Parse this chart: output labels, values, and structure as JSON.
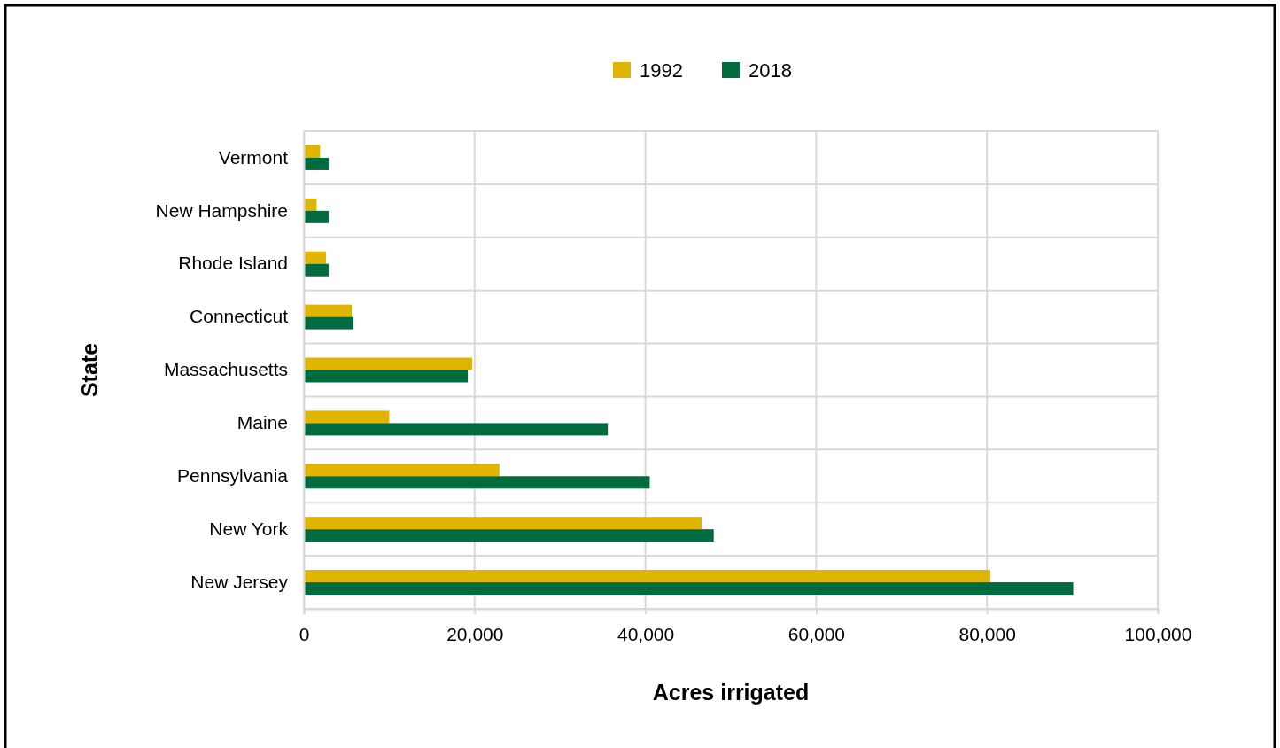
{
  "chart_data": {
    "type": "bar",
    "orientation": "horizontal",
    "xlabel": "Acres irrigated",
    "ylabel": "State",
    "categories": [
      "Vermont",
      "New Hampshire",
      "Rhode Island",
      "Connecticut",
      "Massachusetts",
      "Maine",
      "Pennsylvania",
      "New York",
      "New Jersey"
    ],
    "series": [
      {
        "name": "1992",
        "color": "#deb500",
        "values": [
          1900,
          1500,
          2600,
          5600,
          19700,
          10000,
          22900,
          46600,
          80400
        ]
      },
      {
        "name": "2018",
        "color": "#006b3f",
        "values": [
          2900,
          2900,
          2900,
          5800,
          19200,
          35600,
          40500,
          48000,
          90100
        ]
      }
    ],
    "xlim": [
      0,
      100000
    ],
    "xticks": [
      {
        "value": 0,
        "label": "0"
      },
      {
        "value": 20000,
        "label": "20,000"
      },
      {
        "value": 40000,
        "label": "40,000"
      },
      {
        "value": 60000,
        "label": "60,000"
      },
      {
        "value": 80000,
        "label": "80,000"
      },
      {
        "value": 100000,
        "label": "100,000"
      }
    ],
    "grid": true,
    "legend": "top"
  }
}
